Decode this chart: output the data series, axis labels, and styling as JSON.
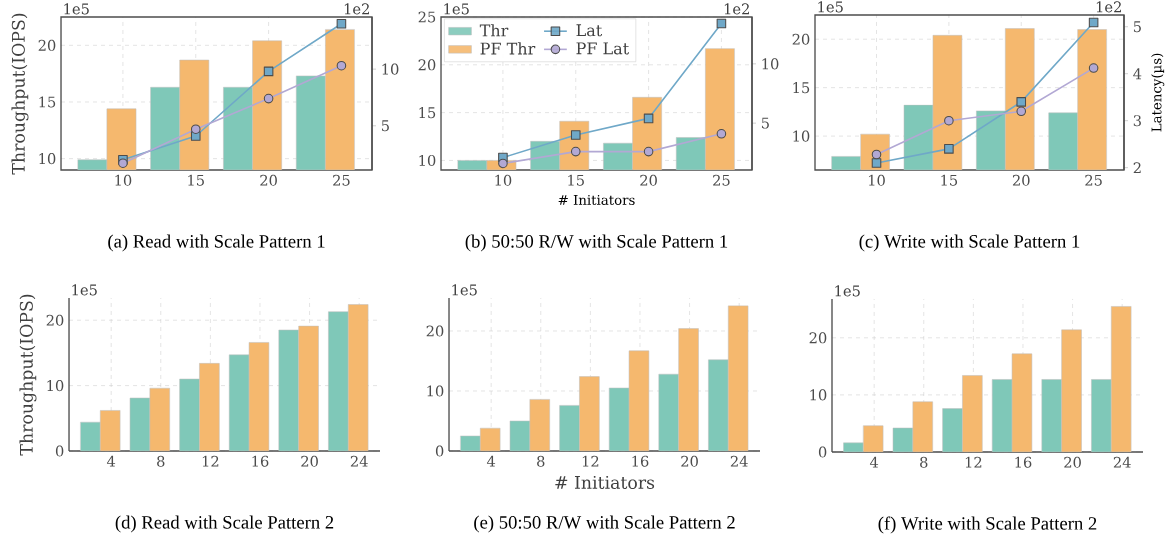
{
  "chart_data": [
    {
      "type": "bar",
      "title": "(a) Read with Scale Pattern 1",
      "ylabel": "Throughput(IOPS)",
      "categories": [
        "10",
        "15",
        "20",
        "25"
      ],
      "ylim": [
        9,
        22.5
      ],
      "yticks": [
        10,
        15,
        20
      ],
      "y2lim": [
        1.1,
        14.6
      ],
      "y2ticks": [
        5,
        10
      ],
      "grid": true,
      "annotations": [
        "1e5",
        "1e2"
      ],
      "series": [
        {
          "color": "#7fc8b8",
          "values": [
            9.9,
            16.3,
            16.3,
            17.3
          ]
        },
        {
          "color": "#f5b86e",
          "values": [
            14.4,
            18.7,
            20.4,
            21.4
          ]
        },
        {
          "type": "line",
          "axis": "y2",
          "marker": "square",
          "color": "#6fa8c8",
          "values": [
            2.0,
            4.1,
            9.8,
            14.0
          ]
        },
        {
          "type": "line",
          "axis": "y2",
          "marker": "circle",
          "color": "#b2a8d4",
          "values": [
            1.7,
            4.7,
            7.4,
            10.3
          ]
        }
      ]
    },
    {
      "type": "bar",
      "title": "(b) 50:50 R/W with Scale Pattern 1",
      "xlabel": "# Initiators",
      "categories": [
        "10",
        "15",
        "20",
        "25"
      ],
      "ylim": [
        9,
        25
      ],
      "yticks": [
        10,
        15,
        20,
        25
      ],
      "y2lim": [
        1.05,
        13.95
      ],
      "y2ticks": [
        5,
        10
      ],
      "grid": true,
      "legend": "top left",
      "annotations": [
        "1e5",
        "1e2"
      ],
      "series": [
        {
          "name": "Thr",
          "color": "#7fc8b8",
          "values": [
            10.0,
            12.0,
            11.8,
            12.4
          ]
        },
        {
          "name": "PF Thr",
          "color": "#f5b86e",
          "values": [
            10.0,
            14.1,
            16.6,
            21.7
          ]
        },
        {
          "type": "line",
          "axis": "y2",
          "name": "Lat",
          "marker": "square",
          "color": "#6fa8c8",
          "values": [
            2.1,
            4.0,
            5.4,
            13.4
          ]
        },
        {
          "type": "line",
          "axis": "y2",
          "name": "PF Lat",
          "marker": "circle",
          "color": "#b2a8d4",
          "values": [
            1.6,
            2.6,
            2.6,
            4.1
          ]
        }
      ]
    },
    {
      "type": "bar",
      "title": "(c) Write with Scale Pattern 1",
      "y2label": "Latency(µs)",
      "categories": [
        "10",
        "15",
        "20",
        "25"
      ],
      "ylim": [
        6.5,
        22.5
      ],
      "yticks": [
        10,
        15,
        20
      ],
      "y2lim": [
        1.95,
        5.25
      ],
      "y2ticks": [
        2,
        3,
        4,
        5
      ],
      "grid": true,
      "annotations": [
        "1e5",
        "1e2"
      ],
      "series": [
        {
          "color": "#7fc8b8",
          "values": [
            7.9,
            13.2,
            12.6,
            12.4
          ]
        },
        {
          "color": "#f5b86e",
          "values": [
            10.2,
            20.4,
            21.1,
            21.0
          ]
        },
        {
          "type": "line",
          "axis": "y2",
          "marker": "square",
          "color": "#6fa8c8",
          "values": [
            2.1,
            2.4,
            3.4,
            5.09
          ]
        },
        {
          "type": "line",
          "axis": "y2",
          "marker": "circle",
          "color": "#b2a8d4",
          "values": [
            2.28,
            3.0,
            3.2,
            4.12
          ]
        }
      ]
    },
    {
      "type": "bar",
      "title": "(d) Read with Scale Pattern 2",
      "ylabel": "Throughput(IOPS)",
      "categories": [
        "4",
        "8",
        "12",
        "16",
        "20",
        "24"
      ],
      "ylim": [
        0,
        23.4
      ],
      "yticks": [
        0,
        10,
        20
      ],
      "grid": true,
      "annotations": [
        "1e5"
      ],
      "series": [
        {
          "color": "#7fc8b8",
          "values": [
            4.4,
            8.1,
            11.0,
            14.7,
            18.5,
            21.3
          ]
        },
        {
          "color": "#f5b86e",
          "values": [
            6.2,
            9.6,
            13.4,
            16.6,
            19.1,
            22.4
          ]
        }
      ]
    },
    {
      "type": "bar",
      "title": "(e) 50:50 R/W with Scale Pattern 2",
      "xlabel": "# Initiators",
      "categories": [
        "4",
        "8",
        "12",
        "16",
        "20",
        "24"
      ],
      "ylim": [
        0,
        25.5
      ],
      "yticks": [
        0,
        10,
        20
      ],
      "grid": true,
      "annotations": [
        "1e5"
      ],
      "series": [
        {
          "color": "#7fc8b8",
          "values": [
            2.5,
            5.0,
            7.6,
            10.5,
            12.8,
            15.2
          ]
        },
        {
          "color": "#f5b86e",
          "values": [
            3.8,
            8.6,
            12.4,
            16.7,
            20.4,
            24.2
          ]
        }
      ]
    },
    {
      "type": "bar",
      "title": "(f) Write with Scale Pattern 2",
      "categories": [
        "4",
        "8",
        "12",
        "16",
        "20",
        "24"
      ],
      "ylim": [
        0,
        26.8
      ],
      "yticks": [
        0,
        10,
        20
      ],
      "grid": true,
      "annotations": [
        "1e5"
      ],
      "series": [
        {
          "color": "#7fc8b8",
          "values": [
            1.6,
            4.2,
            7.6,
            12.7,
            12.7,
            12.7
          ]
        },
        {
          "color": "#f5b86e",
          "values": [
            4.6,
            8.8,
            13.4,
            17.2,
            21.4,
            25.5
          ]
        }
      ]
    }
  ]
}
